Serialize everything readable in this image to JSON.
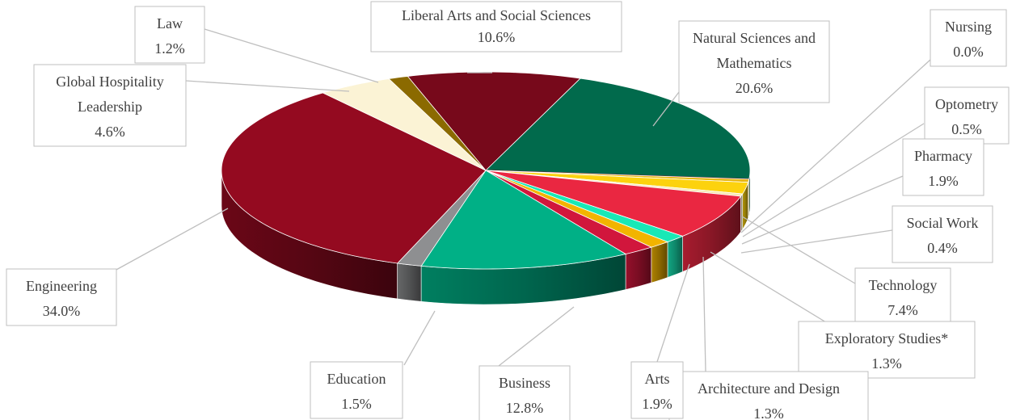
{
  "chart_data": {
    "type": "pie",
    "title": "",
    "series": [
      {
        "label": "Liberal Arts and Social Sciences",
        "value": 10.6,
        "display": "10.6%",
        "color": "#77091b"
      },
      {
        "label": "Natural Sciences and Mathematics",
        "value": 20.6,
        "display": "20.6%",
        "color": "#016a4c"
      },
      {
        "label": "Nursing",
        "value": 0.0,
        "display": "0.0%",
        "color": "#9e0f23"
      },
      {
        "label": "Optometry",
        "value": 0.5,
        "display": "0.5%",
        "color": "#e8b713"
      },
      {
        "label": "Pharmacy",
        "value": 1.9,
        "display": "1.9%",
        "color": "#fcd20e"
      },
      {
        "label": "Social Work",
        "value": 0.4,
        "display": "0.4%",
        "color": "#f6e8b0"
      },
      {
        "label": "Technology",
        "value": 7.4,
        "display": "7.4%",
        "color": "#ea2741"
      },
      {
        "label": "Exploratory Studies*",
        "value": 1.3,
        "display": "1.3%",
        "color": "#19e8b6"
      },
      {
        "label": "Architecture and Design",
        "value": 1.3,
        "display": "1.3%",
        "color": "#f2b400"
      },
      {
        "label": "Arts",
        "value": 1.9,
        "display": "1.9%",
        "color": "#d1163c"
      },
      {
        "label": "Business",
        "value": 12.8,
        "display": "12.8%",
        "color": "#00b086"
      },
      {
        "label": "Education",
        "value": 1.5,
        "display": "1.5%",
        "color": "#8e8f91"
      },
      {
        "label": "Engineering",
        "value": 34.0,
        "display": "34.0%",
        "color": "#940a20"
      },
      {
        "label": "Global Hospitality Leadership",
        "value": 4.6,
        "display": "4.6%",
        "color": "#fbf3d5"
      },
      {
        "label": "Law",
        "value": 1.2,
        "display": "1.2%",
        "color": "#8b6a00"
      }
    ],
    "labels": [
      {
        "lines": [
          "Liberal Arts and Social Sciences",
          "10.6%"
        ]
      },
      {
        "lines": [
          "Natural Sciences and",
          "Mathematics",
          "20.6%"
        ]
      },
      {
        "lines": [
          "Nursing",
          "0.0%"
        ]
      },
      {
        "lines": [
          "Optometry",
          "0.5%"
        ]
      },
      {
        "lines": [
          "Pharmacy",
          "1.9%"
        ]
      },
      {
        "lines": [
          "Social Work",
          "0.4%"
        ]
      },
      {
        "lines": [
          "Technology",
          "7.4%"
        ]
      },
      {
        "lines": [
          "Exploratory Studies*",
          "1.3%"
        ]
      },
      {
        "lines": [
          "Architecture and Design",
          "1.3%"
        ]
      },
      {
        "lines": [
          "Arts",
          "1.9%"
        ]
      },
      {
        "lines": [
          "Business",
          "12.8%"
        ]
      },
      {
        "lines": [
          "Education",
          "1.5%"
        ]
      },
      {
        "lines": [
          "Engineering",
          "34.0%"
        ]
      },
      {
        "lines": [
          "Global Hospitality",
          "Leadership",
          "4.6%"
        ]
      },
      {
        "lines": [
          "Law",
          "1.2%"
        ]
      }
    ]
  }
}
